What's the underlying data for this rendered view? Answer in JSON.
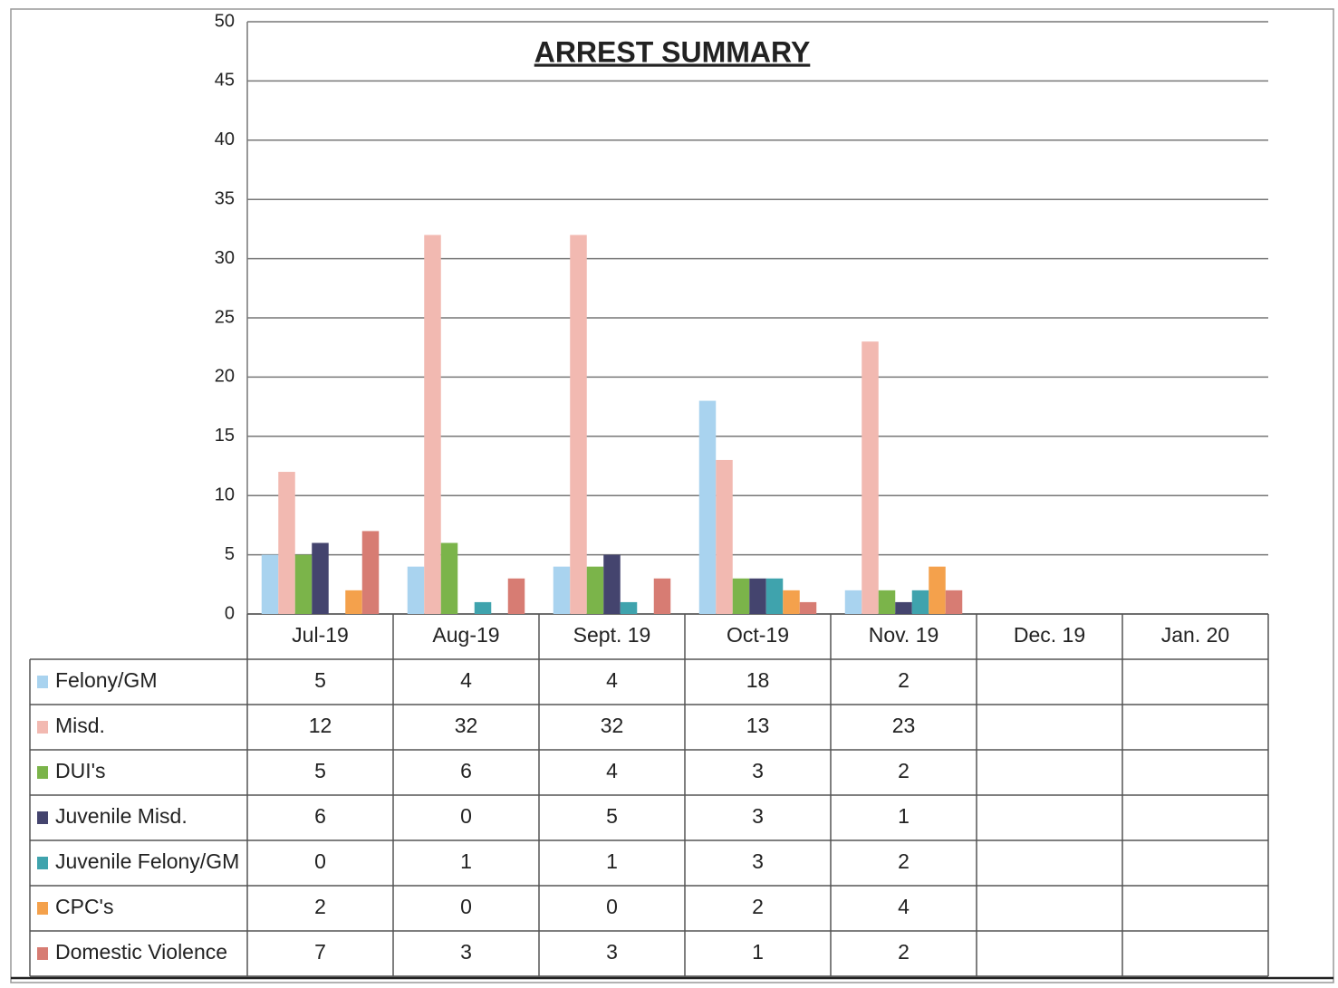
{
  "chart_data": {
    "type": "bar",
    "title": "ARREST SUMMARY",
    "categories": [
      "Jul-19",
      "Aug-19",
      "Sept. 19",
      "Oct-19",
      "Nov. 19",
      "Dec. 19",
      "Jan. 20"
    ],
    "series": [
      {
        "name": "Felony/GM",
        "color": "#a9d3ef",
        "values": [
          5,
          4,
          4,
          18,
          2,
          null,
          null
        ]
      },
      {
        "name": "Misd.",
        "color": "#f2b9b1",
        "values": [
          12,
          32,
          32,
          13,
          23,
          null,
          null
        ]
      },
      {
        "name": "DUI's",
        "color": "#7bb44a",
        "values": [
          5,
          6,
          4,
          3,
          2,
          null,
          null
        ]
      },
      {
        "name": "Juvenile Misd.",
        "color": "#44446e",
        "values": [
          6,
          0,
          5,
          3,
          1,
          null,
          null
        ]
      },
      {
        "name": "Juvenile Felony/GM",
        "color": "#3fa3ad",
        "values": [
          0,
          1,
          1,
          3,
          2,
          null,
          null
        ]
      },
      {
        "name": "CPC's",
        "color": "#f4a14c",
        "values": [
          2,
          0,
          0,
          2,
          4,
          null,
          null
        ]
      },
      {
        "name": "Domestic Violence",
        "color": "#d77c73",
        "values": [
          7,
          3,
          3,
          1,
          2,
          null,
          null
        ]
      }
    ],
    "ylim": [
      0,
      50
    ],
    "yticks": [
      0,
      5,
      10,
      15,
      20,
      25,
      30,
      35,
      40,
      45,
      50
    ],
    "grid": true
  }
}
